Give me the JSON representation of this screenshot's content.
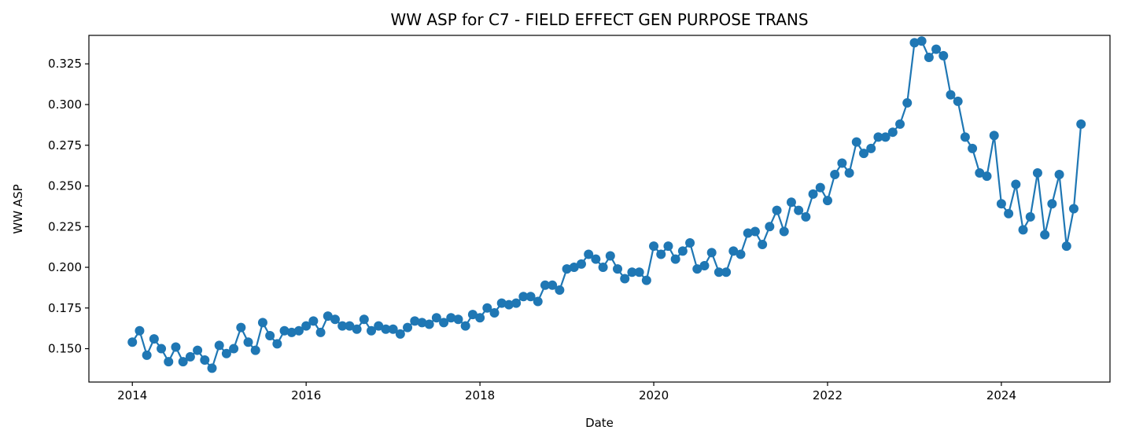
{
  "chart_data": {
    "type": "line",
    "title": "WW ASP for C7 - FIELD EFFECT GEN PURPOSE TRANS",
    "xlabel": "Date",
    "ylabel": "WW ASP",
    "x_ticks": [
      "2014",
      "2016",
      "2018",
      "2020",
      "2022",
      "2024"
    ],
    "y_ticks": [
      "0.150",
      "0.175",
      "0.200",
      "0.225",
      "0.250",
      "0.275",
      "0.300",
      "0.325"
    ],
    "xlim": [
      "2013-07",
      "2025-04"
    ],
    "ylim": [
      0.1295,
      0.3425
    ],
    "grid": false,
    "legend": "none",
    "marker": "circle",
    "color": "#1f77b4",
    "series": [
      {
        "x": [
          "2014-01",
          "2014-02",
          "2014-03",
          "2014-04",
          "2014-05",
          "2014-06",
          "2014-07",
          "2014-08",
          "2014-09",
          "2014-10",
          "2014-11",
          "2014-12",
          "2015-01",
          "2015-02",
          "2015-03",
          "2015-04",
          "2015-05",
          "2015-06",
          "2015-07",
          "2015-08",
          "2015-09",
          "2015-10",
          "2015-11",
          "2015-12",
          "2016-01",
          "2016-02",
          "2016-03",
          "2016-04",
          "2016-05",
          "2016-06",
          "2016-07",
          "2016-08",
          "2016-09",
          "2016-10",
          "2016-11",
          "2016-12",
          "2017-01",
          "2017-02",
          "2017-03",
          "2017-04",
          "2017-05",
          "2017-06",
          "2017-07",
          "2017-08",
          "2017-09",
          "2017-10",
          "2017-11",
          "2017-12",
          "2018-01",
          "2018-02",
          "2018-03",
          "2018-04",
          "2018-05",
          "2018-06",
          "2018-07",
          "2018-08",
          "2018-09",
          "2018-10",
          "2018-11",
          "2018-12",
          "2019-01",
          "2019-02",
          "2019-03",
          "2019-04",
          "2019-05",
          "2019-06",
          "2019-07",
          "2019-08",
          "2019-09",
          "2019-10",
          "2019-11",
          "2019-12",
          "2020-01",
          "2020-02",
          "2020-03",
          "2020-04",
          "2020-05",
          "2020-06",
          "2020-07",
          "2020-08",
          "2020-09",
          "2020-10",
          "2020-11",
          "2020-12",
          "2021-01",
          "2021-02",
          "2021-03",
          "2021-04",
          "2021-05",
          "2021-06",
          "2021-07",
          "2021-08",
          "2021-09",
          "2021-10",
          "2021-11",
          "2021-12",
          "2022-01",
          "2022-02",
          "2022-03",
          "2022-04",
          "2022-05",
          "2022-06",
          "2022-07",
          "2022-08",
          "2022-09",
          "2022-10",
          "2022-11",
          "2022-12",
          "2023-01",
          "2023-02",
          "2023-03",
          "2023-04",
          "2023-05",
          "2023-06",
          "2023-07",
          "2023-08",
          "2023-09",
          "2023-10",
          "2023-11",
          "2023-12",
          "2024-01",
          "2024-02",
          "2024-03",
          "2024-04",
          "2024-05",
          "2024-06",
          "2024-07",
          "2024-08",
          "2024-09",
          "2024-10",
          "2024-11",
          "2024-12"
        ],
        "y": [
          0.154,
          0.161,
          0.146,
          0.156,
          0.15,
          0.142,
          0.151,
          0.142,
          0.145,
          0.149,
          0.143,
          0.138,
          0.152,
          0.147,
          0.15,
          0.163,
          0.154,
          0.149,
          0.166,
          0.158,
          0.153,
          0.161,
          0.16,
          0.161,
          0.164,
          0.167,
          0.16,
          0.17,
          0.168,
          0.164,
          0.164,
          0.162,
          0.168,
          0.161,
          0.164,
          0.162,
          0.162,
          0.159,
          0.163,
          0.167,
          0.166,
          0.165,
          0.169,
          0.166,
          0.169,
          0.168,
          0.164,
          0.171,
          0.169,
          0.175,
          0.172,
          0.178,
          0.177,
          0.178,
          0.182,
          0.182,
          0.179,
          0.189,
          0.189,
          0.186,
          0.199,
          0.2,
          0.202,
          0.208,
          0.205,
          0.2,
          0.207,
          0.199,
          0.193,
          0.197,
          0.197,
          0.192,
          0.213,
          0.208,
          0.213,
          0.205,
          0.21,
          0.215,
          0.199,
          0.201,
          0.209,
          0.197,
          0.197,
          0.21,
          0.208,
          0.221,
          0.222,
          0.214,
          0.225,
          0.235,
          0.222,
          0.24,
          0.235,
          0.231,
          0.245,
          0.249,
          0.241,
          0.257,
          0.264,
          0.258,
          0.277,
          0.27,
          0.273,
          0.28,
          0.28,
          0.283,
          0.288,
          0.301,
          0.338,
          0.339,
          0.329,
          0.334,
          0.33,
          0.306,
          0.302,
          0.28,
          0.273,
          0.258,
          0.256,
          0.281,
          0.239,
          0.233,
          0.251,
          0.223,
          0.231,
          0.258,
          0.22,
          0.239,
          0.257,
          0.213,
          0.236,
          0.288
        ]
      }
    ]
  }
}
